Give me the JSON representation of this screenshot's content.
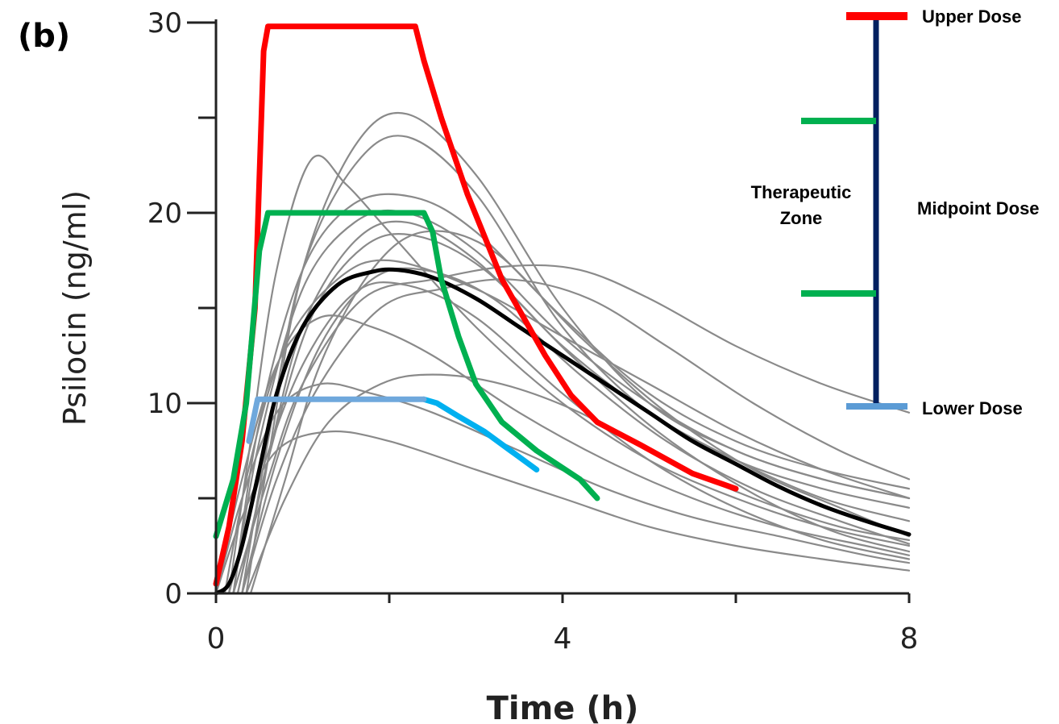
{
  "panel_label": "(b)",
  "chart_data": {
    "type": "line",
    "xlabel": "Time (h)",
    "ylabel": "Psilocin (ng/ml)",
    "xlim": [
      0,
      8
    ],
    "ylim": [
      0,
      30
    ],
    "x_ticks": [
      0,
      2,
      4,
      6,
      8
    ],
    "x_tick_labels": [
      "0",
      "",
      "4",
      "",
      "8"
    ],
    "y_ticks": [
      0,
      5,
      10,
      15,
      20,
      25,
      30
    ],
    "y_tick_labels": [
      "0",
      "",
      "10",
      "",
      "20",
      "",
      "30"
    ],
    "grid": false,
    "individual_profiles": [
      {
        "pts": [
          [
            0.35,
            0
          ],
          [
            0.6,
            7
          ],
          [
            1.0,
            17
          ],
          [
            1.6,
            23.5
          ],
          [
            2.2,
            25.2
          ],
          [
            3.0,
            22
          ],
          [
            4.0,
            15
          ],
          [
            5.0,
            10
          ],
          [
            6.0,
            7.5
          ],
          [
            7.0,
            6
          ],
          [
            8.0,
            5
          ]
        ]
      },
      {
        "pts": [
          [
            0.3,
            0
          ],
          [
            0.6,
            8
          ],
          [
            1.0,
            17
          ],
          [
            1.6,
            22.5
          ],
          [
            2.2,
            24
          ],
          [
            3.0,
            21
          ],
          [
            4.0,
            14
          ],
          [
            5.0,
            9.5
          ],
          [
            6.0,
            7
          ],
          [
            7.0,
            5.5
          ],
          [
            8.0,
            4.5
          ]
        ]
      },
      {
        "pts": [
          [
            0.15,
            0
          ],
          [
            0.4,
            8
          ],
          [
            0.7,
            17
          ],
          [
            1.1,
            22.8
          ],
          [
            1.5,
            21.5
          ],
          [
            2.0,
            19
          ],
          [
            3.0,
            14
          ],
          [
            4.0,
            10
          ],
          [
            5.0,
            7
          ],
          [
            6.0,
            5
          ],
          [
            7.0,
            3.5
          ],
          [
            8.0,
            2.5
          ]
        ]
      },
      {
        "pts": [
          [
            0.2,
            0
          ],
          [
            0.5,
            9
          ],
          [
            1.0,
            17
          ],
          [
            1.6,
            20.5
          ],
          [
            2.3,
            20.8
          ],
          [
            3.0,
            19
          ],
          [
            4.0,
            14.5
          ],
          [
            5.0,
            10.5
          ],
          [
            6.0,
            8
          ],
          [
            7.0,
            6.5
          ],
          [
            8.0,
            5.5
          ]
        ]
      },
      {
        "pts": [
          [
            0.2,
            0
          ],
          [
            0.5,
            8
          ],
          [
            1.0,
            16
          ],
          [
            1.6,
            19.5
          ],
          [
            2.2,
            20
          ],
          [
            3.0,
            18
          ],
          [
            4.0,
            13.5
          ],
          [
            5.0,
            10
          ],
          [
            6.0,
            7.5
          ],
          [
            7.0,
            6
          ],
          [
            8.0,
            5
          ]
        ]
      },
      {
        "pts": [
          [
            0.25,
            0
          ],
          [
            0.6,
            7
          ],
          [
            1.0,
            14
          ],
          [
            1.6,
            18.5
          ],
          [
            2.2,
            19.5
          ],
          [
            3.0,
            17.5
          ],
          [
            4.0,
            13
          ],
          [
            5.0,
            9.5
          ],
          [
            6.0,
            7
          ],
          [
            7.0,
            5
          ],
          [
            8.0,
            3.8
          ]
        ]
      },
      {
        "pts": [
          [
            0.1,
            0
          ],
          [
            0.4,
            7
          ],
          [
            0.8,
            13
          ],
          [
            1.4,
            16.5
          ],
          [
            2.0,
            17.5
          ],
          [
            3.0,
            16
          ],
          [
            4.0,
            13.5
          ],
          [
            5.0,
            11
          ],
          [
            6.0,
            8.5
          ],
          [
            7.0,
            6.5
          ],
          [
            8.0,
            5
          ]
        ]
      },
      {
        "pts": [
          [
            0.2,
            0
          ],
          [
            0.6,
            6
          ],
          [
            1.0,
            11
          ],
          [
            1.7,
            15.5
          ],
          [
            2.5,
            16.5
          ],
          [
            3.4,
            17.2
          ],
          [
            4.2,
            17
          ],
          [
            5.0,
            15.5
          ],
          [
            6.0,
            13
          ],
          [
            7.0,
            11
          ],
          [
            8.0,
            9.5
          ]
        ]
      },
      {
        "pts": [
          [
            0.3,
            0
          ],
          [
            0.7,
            6
          ],
          [
            1.2,
            11
          ],
          [
            1.9,
            15
          ],
          [
            2.6,
            16
          ],
          [
            3.4,
            16.5
          ],
          [
            4.3,
            15.5
          ],
          [
            5.2,
            13
          ],
          [
            6.2,
            10
          ],
          [
            7.2,
            7.5
          ],
          [
            8.0,
            6
          ]
        ]
      },
      {
        "pts": [
          [
            0.0,
            0
          ],
          [
            0.3,
            6
          ],
          [
            0.7,
            12
          ],
          [
            1.2,
            14.5
          ],
          [
            1.8,
            14
          ],
          [
            2.5,
            12.5
          ],
          [
            3.5,
            9.5
          ],
          [
            4.5,
            7
          ],
          [
            5.5,
            5
          ],
          [
            6.5,
            3.5
          ],
          [
            7.5,
            2.5
          ],
          [
            8.0,
            2
          ]
        ]
      },
      {
        "pts": [
          [
            0.0,
            0
          ],
          [
            0.3,
            5
          ],
          [
            0.7,
            9.5
          ],
          [
            1.2,
            11
          ],
          [
            1.8,
            10.5
          ],
          [
            2.5,
            9.5
          ],
          [
            3.5,
            7.5
          ],
          [
            4.5,
            5.5
          ],
          [
            5.5,
            4
          ],
          [
            6.5,
            3
          ],
          [
            7.5,
            2
          ],
          [
            8.0,
            1.6
          ]
        ]
      },
      {
        "pts": [
          [
            0.35,
            0
          ],
          [
            0.8,
            5
          ],
          [
            1.3,
            9
          ],
          [
            1.9,
            11
          ],
          [
            2.5,
            11.5
          ],
          [
            3.3,
            11
          ],
          [
            4.2,
            9.5
          ],
          [
            5.2,
            7
          ],
          [
            6.2,
            5
          ],
          [
            7.2,
            3.5
          ],
          [
            8.0,
            2.8
          ]
        ]
      },
      {
        "pts": [
          [
            0.0,
            0
          ],
          [
            0.3,
            4
          ],
          [
            0.7,
            7.5
          ],
          [
            1.3,
            8.5
          ],
          [
            2.0,
            8
          ],
          [
            3.0,
            6.5
          ],
          [
            4.0,
            5
          ],
          [
            5.0,
            3.5
          ],
          [
            6.0,
            2.5
          ],
          [
            7.0,
            1.8
          ],
          [
            8.0,
            1.2
          ]
        ]
      },
      {
        "pts": [
          [
            0.4,
            0
          ],
          [
            0.8,
            6
          ],
          [
            1.2,
            12
          ],
          [
            1.8,
            17
          ],
          [
            2.4,
            19
          ],
          [
            3.2,
            18
          ],
          [
            4.2,
            13.5
          ],
          [
            5.2,
            9.5
          ],
          [
            6.2,
            6.5
          ],
          [
            7.2,
            4.5
          ],
          [
            8.0,
            3
          ]
        ]
      },
      {
        "pts": [
          [
            0.3,
            0
          ],
          [
            0.7,
            7
          ],
          [
            1.2,
            13
          ],
          [
            1.8,
            16.5
          ],
          [
            2.4,
            17
          ],
          [
            3.2,
            15.5
          ],
          [
            4.2,
            11.5
          ],
          [
            5.2,
            8
          ],
          [
            6.2,
            5.5
          ],
          [
            7.2,
            3.8
          ],
          [
            8.0,
            2.6
          ]
        ]
      },
      {
        "pts": [
          [
            0.15,
            0
          ],
          [
            0.5,
            6
          ],
          [
            1.0,
            12
          ],
          [
            1.6,
            15.8
          ],
          [
            2.2,
            16.2
          ],
          [
            3.0,
            14.5
          ],
          [
            4.0,
            10.5
          ],
          [
            5.0,
            7
          ],
          [
            6.0,
            4.5
          ],
          [
            7.0,
            2.8
          ],
          [
            8.0,
            1.8
          ]
        ]
      },
      {
        "pts": [
          [
            0.25,
            0
          ],
          [
            0.6,
            7
          ],
          [
            1.1,
            14.5
          ],
          [
            1.7,
            18.2
          ],
          [
            2.3,
            18.8
          ],
          [
            3.1,
            17
          ],
          [
            4.1,
            12.5
          ],
          [
            5.1,
            8.5
          ],
          [
            6.1,
            5.5
          ],
          [
            7.1,
            3.3
          ],
          [
            8.0,
            2.2
          ]
        ]
      }
    ],
    "mean_profile": {
      "pts": [
        [
          0.0,
          0
        ],
        [
          0.15,
          0.5
        ],
        [
          0.3,
          2.5
        ],
        [
          0.5,
          6.5
        ],
        [
          0.7,
          10.5
        ],
        [
          1.0,
          14
        ],
        [
          1.4,
          16.2
        ],
        [
          1.8,
          16.9
        ],
        [
          2.1,
          17
        ],
        [
          2.5,
          16.6
        ],
        [
          3.0,
          15.5
        ],
        [
          3.5,
          14
        ],
        [
          4.0,
          12.5
        ],
        [
          4.5,
          11
        ],
        [
          5.0,
          9.5
        ],
        [
          5.5,
          8
        ],
        [
          6.0,
          6.8
        ],
        [
          6.5,
          5.6
        ],
        [
          7.0,
          4.6
        ],
        [
          7.5,
          3.8
        ],
        [
          8.0,
          3.1
        ]
      ]
    },
    "dose_lines": [
      {
        "color": "#ff0000",
        "pts": [
          [
            0.0,
            0.5
          ],
          [
            0.15,
            3.5
          ],
          [
            0.3,
            8
          ],
          [
            0.45,
            15
          ],
          [
            0.55,
            28.5
          ],
          [
            0.6,
            29.8
          ],
          [
            2.3,
            29.8
          ],
          [
            2.4,
            28
          ],
          [
            2.6,
            25
          ],
          [
            2.9,
            21
          ],
          [
            3.3,
            16.5
          ],
          [
            3.8,
            12.5
          ],
          [
            4.1,
            10.4
          ],
          [
            4.4,
            9
          ],
          [
            4.9,
            7.8
          ],
          [
            5.5,
            6.3
          ],
          [
            6.0,
            5.5
          ]
        ]
      },
      {
        "color": "#00b050",
        "pts": [
          [
            0.0,
            3
          ],
          [
            0.2,
            6
          ],
          [
            0.35,
            10
          ],
          [
            0.5,
            18
          ],
          [
            0.6,
            20
          ],
          [
            2.4,
            20
          ],
          [
            2.5,
            19
          ],
          [
            2.6,
            16.5
          ],
          [
            2.8,
            13.5
          ],
          [
            3.0,
            11
          ],
          [
            3.3,
            9
          ],
          [
            3.7,
            7.5
          ],
          [
            4.2,
            6
          ],
          [
            4.4,
            5
          ]
        ]
      },
      {
        "color": "#00b0f0",
        "pts": [
          [
            2.4,
            10.2
          ],
          [
            2.55,
            10
          ],
          [
            2.8,
            9.3
          ],
          [
            3.1,
            8.5
          ],
          [
            3.4,
            7.5
          ],
          [
            3.7,
            6.5
          ]
        ]
      },
      {
        "color": "#6fa8dc",
        "pts": [
          [
            0.38,
            8
          ],
          [
            0.48,
            10.2
          ],
          [
            2.4,
            10.2
          ]
        ]
      }
    ],
    "annotations": {
      "upper_dose": "Upper Dose",
      "midpoint_dose": "Midpoint Dose",
      "lower_dose": "Lower Dose",
      "therapeutic_zone_line1": "Therapeutic",
      "therapeutic_zone_line2": "Zone"
    },
    "colors": {
      "individual": "#8a8a8a",
      "mean": "#000000",
      "upper": "#ff0000",
      "therapeutic": "#00b050",
      "lower": "#5b9bd5",
      "scale_bar": "#002060",
      "axis": "#222222"
    }
  }
}
